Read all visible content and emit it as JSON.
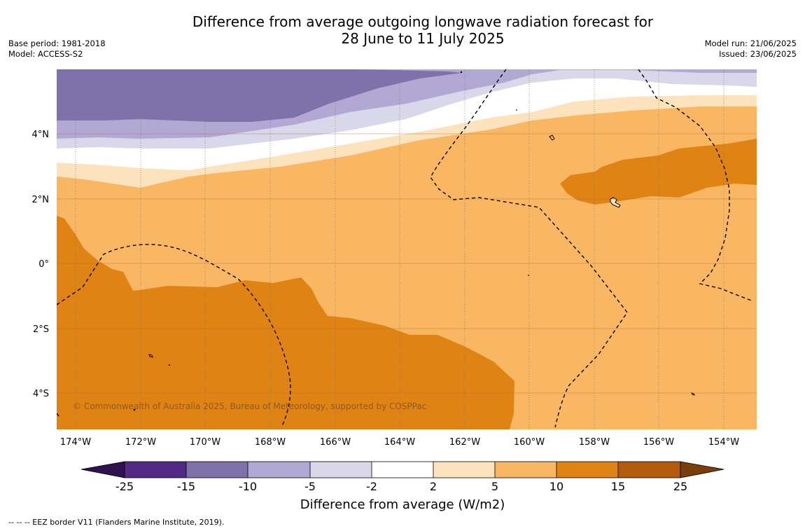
{
  "title_line1": "Difference from average outgoing longwave radiation forecast for",
  "title_line2": "28 June to 11 July 2025",
  "base_period": "Base period: 1981-2018",
  "model": "Model: ACCESS-S2",
  "model_run": "Model run: 21/06/2025",
  "issued": "Issued: 23/06/2025",
  "copyright": "© Commonwealth of Australia 2025, Bureau of Meteorology, supported by COSPPac",
  "latitude_labels": [
    "4°N",
    "2°N",
    "0°",
    "2°S",
    "4°S"
  ],
  "longitude_labels": [
    "174°W",
    "172°W",
    "170°W",
    "168°W",
    "166°W",
    "164°W",
    "162°W",
    "160°W",
    "158°W",
    "156°W",
    "154°W"
  ],
  "colorbar": {
    "title": "Difference from average (W/m2)",
    "ticks": [
      "-25",
      "-15",
      "-10",
      "-5",
      "-2",
      "2",
      "5",
      "10",
      "15",
      "25"
    ],
    "colors": [
      "#522a85",
      "#7f72ab",
      "#b1a8d3",
      "#d9d8ea",
      "#ffffff",
      "#fde3bd",
      "#f9b763",
      "#e08315",
      "#b05c0c"
    ],
    "under_color": "#30104f",
    "over_color": "#7a3e08"
  },
  "footer": "--  --  -- EEZ border V11 (Flanders Marine Institute, 2019)."
}
